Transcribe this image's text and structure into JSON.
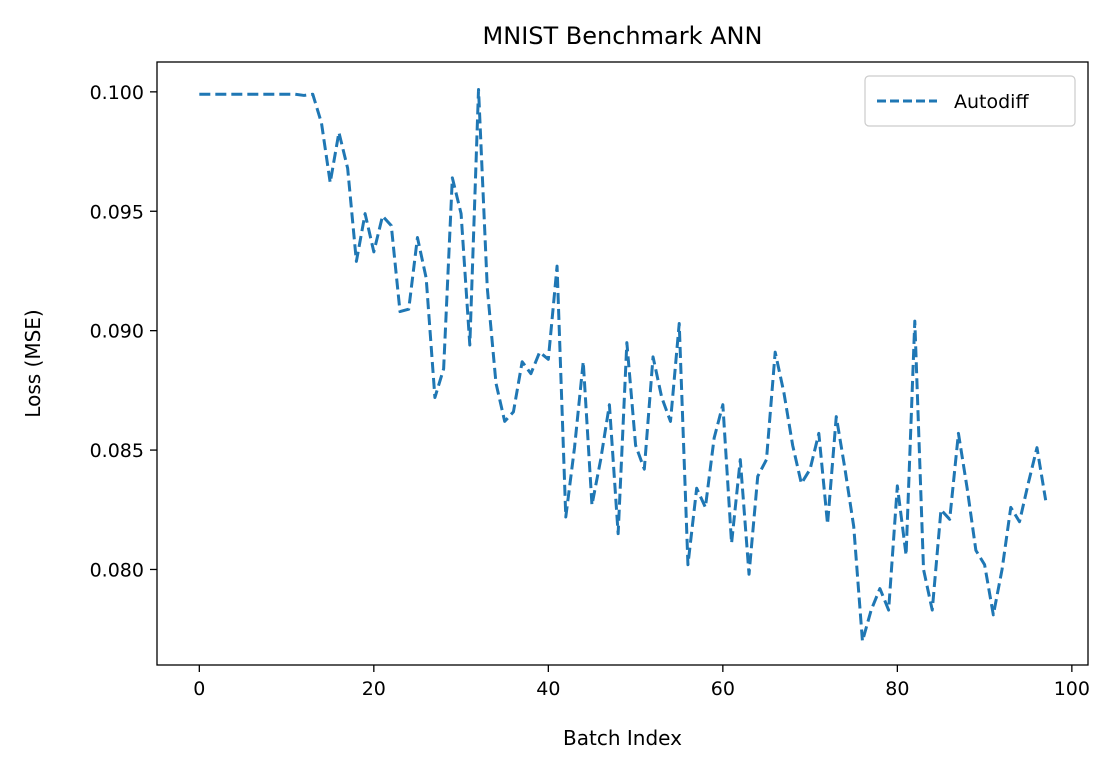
{
  "chart_data": {
    "type": "line",
    "title": "MNIST Benchmark ANN",
    "xlabel": "Batch Index",
    "ylabel": "Loss (MSE)",
    "xlim": [
      -4.85,
      101.85
    ],
    "ylim": [
      0.076,
      0.10125
    ],
    "xticks": [
      0,
      20,
      40,
      60,
      80,
      100
    ],
    "xtick_labels": [
      "0",
      "20",
      "40",
      "60",
      "80",
      "100"
    ],
    "yticks": [
      0.08,
      0.085,
      0.09,
      0.095,
      0.1
    ],
    "ytick_labels": [
      "0.080",
      "0.085",
      "0.090",
      "0.095",
      "0.100"
    ],
    "grid": false,
    "legend_position": "top-right",
    "series": [
      {
        "name": "Autodiff",
        "color": "#1f77b4",
        "linestyle": "dashed",
        "x": [
          0,
          1,
          2,
          3,
          4,
          5,
          6,
          7,
          8,
          9,
          10,
          11,
          12,
          13,
          14,
          15,
          16,
          17,
          18,
          19,
          20,
          21,
          22,
          23,
          24,
          25,
          26,
          27,
          28,
          29,
          30,
          31,
          32,
          33,
          34,
          35,
          36,
          37,
          38,
          39,
          40,
          41,
          42,
          43,
          44,
          45,
          46,
          47,
          48,
          49,
          50,
          51,
          52,
          53,
          54,
          55,
          56,
          57,
          58,
          59,
          60,
          61,
          62,
          63,
          64,
          65,
          66,
          67,
          68,
          69,
          70,
          71,
          72,
          73,
          74,
          75,
          76,
          77,
          78,
          79,
          80,
          81,
          82,
          83,
          84,
          85,
          86,
          87,
          88,
          89,
          90,
          91,
          92,
          93,
          94,
          95,
          96,
          97
        ],
        "y": [
          0.0999,
          0.0999,
          0.0999,
          0.0999,
          0.0999,
          0.0999,
          0.0999,
          0.0999,
          0.0999,
          0.0999,
          0.0999,
          0.0999,
          0.09985,
          0.0999,
          0.0987,
          0.0962,
          0.0983,
          0.0968,
          0.0929,
          0.0949,
          0.0933,
          0.0948,
          0.0944,
          0.0908,
          0.0909,
          0.0939,
          0.0922,
          0.0872,
          0.0884,
          0.0964,
          0.0949,
          0.0894,
          0.1001,
          0.0918,
          0.0878,
          0.0862,
          0.0866,
          0.0887,
          0.0882,
          0.0891,
          0.0888,
          0.0927,
          0.0822,
          0.0851,
          0.0887,
          0.0827,
          0.0846,
          0.0869,
          0.0815,
          0.0895,
          0.0852,
          0.0842,
          0.0889,
          0.0872,
          0.0862,
          0.0903,
          0.0802,
          0.0834,
          0.0826,
          0.0855,
          0.0869,
          0.0811,
          0.0846,
          0.0798,
          0.0839,
          0.0846,
          0.0891,
          0.0874,
          0.0852,
          0.0836,
          0.0842,
          0.0857,
          0.0819,
          0.0864,
          0.0842,
          0.0818,
          0.077,
          0.0783,
          0.0792,
          0.0783,
          0.0835,
          0.0806,
          0.0904,
          0.08,
          0.0783,
          0.0825,
          0.0821,
          0.0857,
          0.0834,
          0.0808,
          0.0802,
          0.0781,
          0.08,
          0.0826,
          0.082,
          0.0836,
          0.0851,
          0.0829
        ]
      }
    ]
  }
}
